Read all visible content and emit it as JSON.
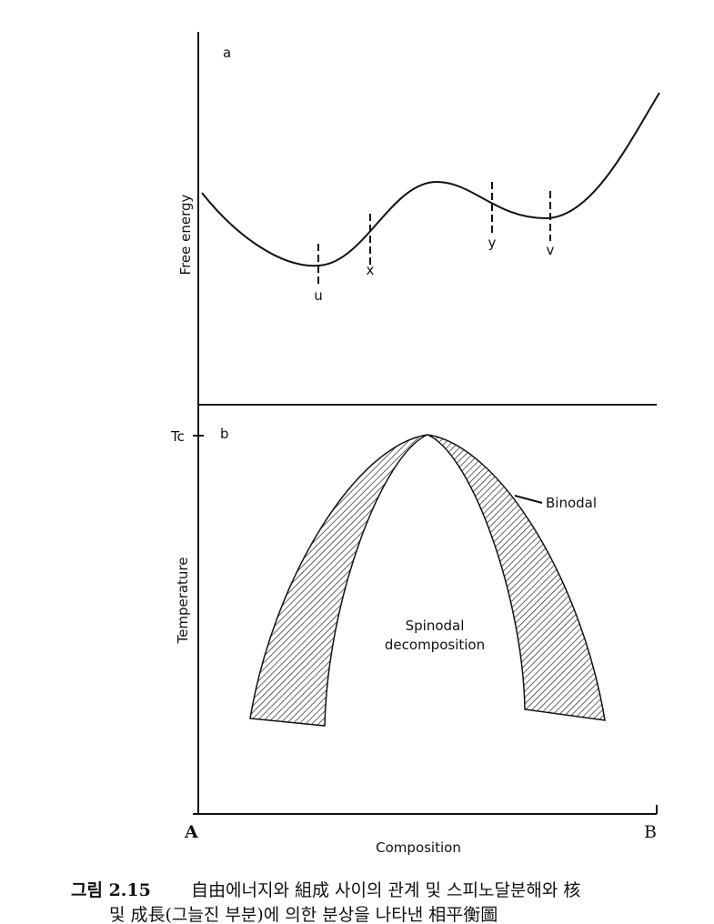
{
  "panel_a": {
    "label": "a",
    "y_axis_label": "Free energy",
    "points": [
      "u",
      "x",
      "y",
      "v"
    ]
  },
  "panel_b": {
    "label": "b",
    "tc_label": "Tc",
    "binodal_label": "Binodal",
    "region_label": [
      "Spinodal",
      "decomposition"
    ],
    "y_axis_label": "Temperature"
  },
  "x_axis": {
    "left": "A",
    "right": "B",
    "label": "Composition"
  },
  "caption": {
    "number": "그림 2.15",
    "line1": "自由에너지와 組成 사이의 관계 및 스피노달분해와 核",
    "line2": "및 成長(그늘진 부분)에 의한 분상을 나타낸 相平衡圖"
  }
}
